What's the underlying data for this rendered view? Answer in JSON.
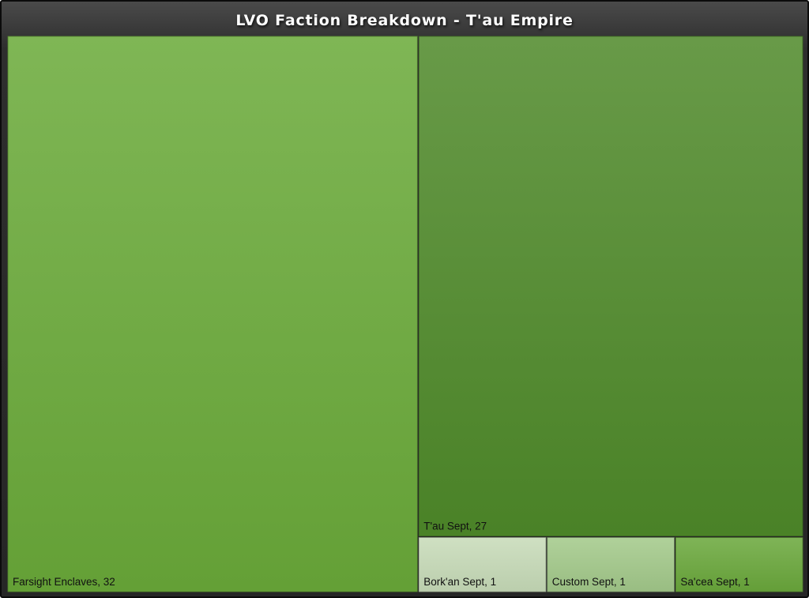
{
  "chart_data": {
    "type": "treemap",
    "title": "LVO Faction Breakdown - T'au Empire",
    "items": [
      {
        "name": "Farsight Enclaves",
        "value": 32,
        "label": "Farsight Enclaves, 32",
        "color": "#6aaa39"
      },
      {
        "name": "T'au Sept",
        "value": 27,
        "label": "T'au Sept, 27",
        "color": "#4f8a2a"
      },
      {
        "name": "Bork'an Sept",
        "value": 1,
        "label": "Bork'an Sept, 1",
        "color": "#c7dbb8"
      },
      {
        "name": "Custom Sept",
        "value": 1,
        "label": "Custom Sept, 1",
        "color": "#a3c98a"
      },
      {
        "name": "Sa'cea Sept",
        "value": 1,
        "label": "Sa'cea Sept, 1",
        "color": "#6aa83c"
      }
    ]
  }
}
